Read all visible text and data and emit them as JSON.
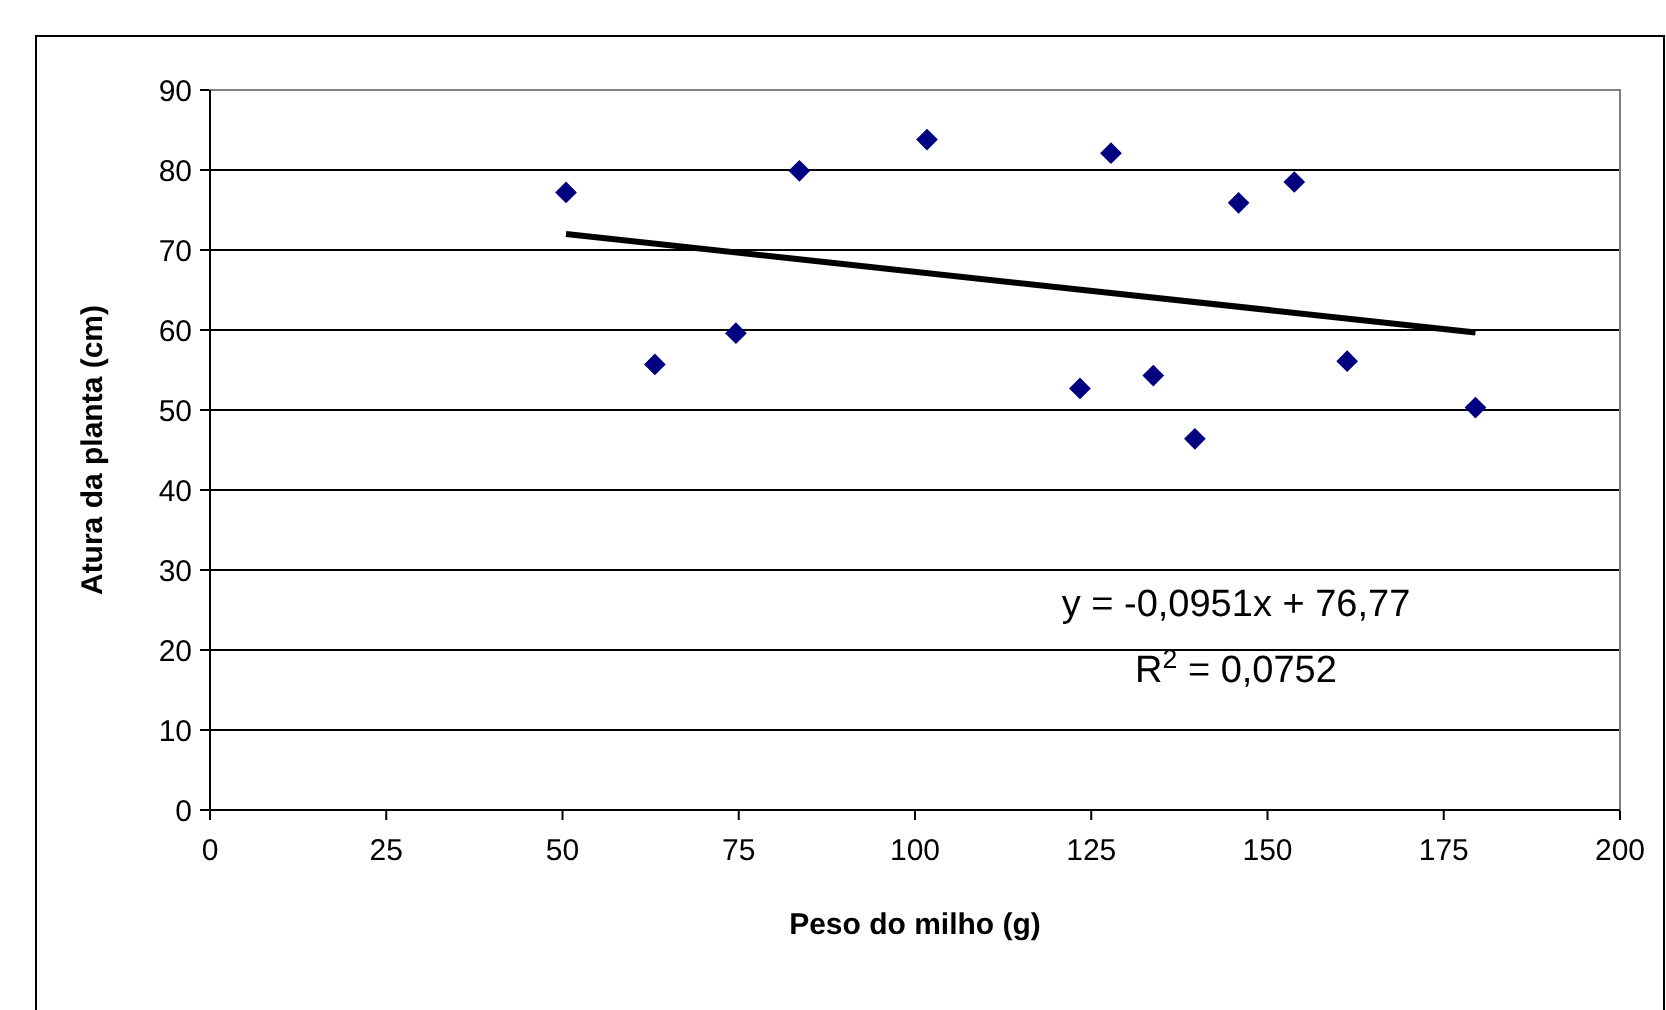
{
  "chart_data": {
    "type": "scatter",
    "xlabel": "Peso do milho (g)",
    "ylabel": "Atura da planta (cm)",
    "xlim": [
      0,
      200
    ],
    "xticks": [
      0,
      25,
      50,
      75,
      100,
      125,
      150,
      175,
      200
    ],
    "ylim": [
      0,
      90
    ],
    "yticks": [
      0,
      10,
      20,
      30,
      40,
      50,
      60,
      70,
      80,
      90
    ],
    "grid": "y",
    "series": [
      {
        "color": "#000080",
        "marker": "diamond",
        "x": [
          50.5,
          63.1,
          74.6,
          83.6,
          101.7,
          123.4,
          127.8,
          133.8,
          139.7,
          145.9,
          153.8,
          161.3,
          179.5
        ],
        "values": [
          77.2,
          55.7,
          59.6,
          79.9,
          83.8,
          52.7,
          82.1,
          54.3,
          46.4,
          75.9,
          78.5,
          56.1,
          50.3
        ]
      },
      {
        "type": "line",
        "color": "#000000",
        "marker": "none",
        "line_style": "solid",
        "x": [
          50.5,
          179.5
        ],
        "values": [
          72.0,
          59.7
        ]
      }
    ],
    "annotations": [
      "y = -0,0951x + 76,77",
      "R$^{2}$ = 0,0752"
    ]
  }
}
